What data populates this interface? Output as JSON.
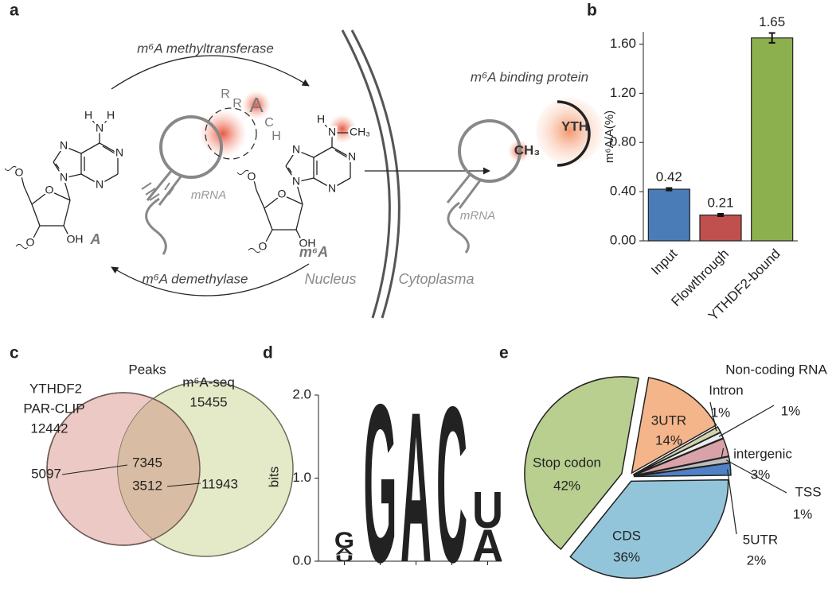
{
  "panel_labels": [
    "a",
    "b",
    "c",
    "d",
    "e"
  ],
  "diagram": {
    "enzymes": [
      "m⁶A methyltransferase",
      "m⁶A demethylase",
      "m⁶A binding protein"
    ],
    "compartments": [
      "Nucleus",
      "Cytoplasma"
    ],
    "rna_labels": [
      "mRNA",
      "mRNA"
    ],
    "nucleosides": [
      "A",
      "m⁶A"
    ],
    "motif": [
      "R",
      "R",
      "A",
      "C",
      "H"
    ],
    "reader": [
      "YTH",
      "CH₃"
    ],
    "atoms_a": [
      "H",
      "N",
      "H",
      "N",
      "N",
      "N",
      "N",
      "O",
      "O",
      "OH",
      "O"
    ],
    "atoms_m6a": [
      "H",
      "N",
      "CH₃",
      "N",
      "N",
      "N",
      "N",
      "O",
      "O",
      "OH",
      "O"
    ]
  },
  "venn": {
    "title": "Peaks",
    "sets": [
      {
        "lines": [
          "YTHDF2",
          "PAR-CLIP",
          "12442"
        ],
        "color": "#edc9c5"
      },
      {
        "lines": [
          "m⁶A-seq",
          "15455"
        ],
        "color": "#e4eac8"
      }
    ],
    "regions": [
      "5097",
      "7345",
      "3512",
      "11943"
    ],
    "overlap_color": "#d8bca3"
  },
  "chart_data": [
    {
      "type": "bar",
      "ylabel": "m⁶A/A(%)",
      "categories": [
        "Input",
        "Flowthrough",
        "YTHDF2-bound"
      ],
      "values": [
        0.42,
        0.21,
        1.65
      ],
      "error": [
        0.01,
        0.01,
        0.04
      ],
      "colors": [
        "#4a7db8",
        "#c0504d",
        "#8db04f"
      ],
      "ylim": [
        0,
        1.7
      ],
      "yticks": [
        {
          "value": 0,
          "label": "0.00"
        },
        {
          "value": 0.4,
          "label": "0.40"
        },
        {
          "value": 0.8,
          "label": "0.80"
        },
        {
          "value": 1.2,
          "label": "1.20"
        },
        {
          "value": 1.6,
          "label": "1.60"
        }
      ]
    },
    {
      "type": "logo",
      "ylabel": "bits",
      "ylim": [
        0,
        2
      ],
      "yticks": [
        {
          "value": 0,
          "label": "0.0"
        },
        {
          "value": 1,
          "label": "1.0"
        },
        {
          "value": 2,
          "label": "2.0"
        }
      ],
      "positions": [
        {
          "letters": [
            {
              "letter": "U",
              "color": "#d62027",
              "height": 0.08
            },
            {
              "letter": "A",
              "color": "#1a8f3c",
              "height": 0.08
            },
            {
              "letter": "G",
              "color": "#f5a01a",
              "height": 0.2
            }
          ]
        },
        {
          "letters": [
            {
              "letter": "G",
              "color": "#f5a01a",
              "height": 1.98
            }
          ]
        },
        {
          "letters": [
            {
              "letter": "A",
              "color": "#1a8f3c",
              "height": 1.88
            }
          ]
        },
        {
          "letters": [
            {
              "letter": "C",
              "color": "#1f4ea0",
              "height": 1.95
            }
          ]
        },
        {
          "letters": [
            {
              "letter": "A",
              "color": "#1a8f3c",
              "height": 0.4
            },
            {
              "letter": "U",
              "color": "#d62027",
              "height": 0.45
            }
          ]
        }
      ]
    },
    {
      "type": "pie",
      "categories": [
        "3UTR",
        "Intron",
        "Non-coding RNA",
        "intergenic",
        "TSS",
        "5UTR",
        "CDS",
        "Stop codon"
      ],
      "values": [
        14,
        1,
        1,
        3,
        1,
        2,
        36,
        42
      ],
      "value_labels": [
        "14%",
        "1%",
        "1%",
        "3%",
        "1%",
        "2%",
        "36%",
        "42%"
      ],
      "colors": [
        "#f4b58a",
        "#d3d3ae",
        "#ececec",
        "#d9a2a9",
        "#bdbdbd",
        "#4f81c6",
        "#93c5da",
        "#b8cf8f"
      ]
    }
  ]
}
